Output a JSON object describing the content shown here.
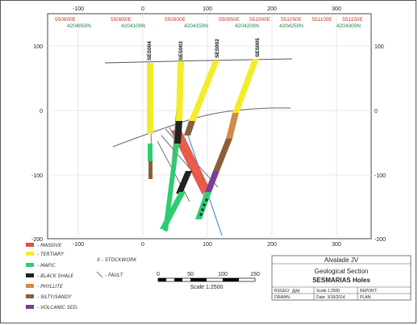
{
  "axes": {
    "x_ticks_top": [
      "-100",
      "0",
      "100",
      "200",
      "300"
    ],
    "x_ticks_bottom": [
      "-100",
      "0",
      "100",
      "200",
      "300"
    ],
    "y_ticks_left": [
      "100",
      "0",
      "-100",
      "-200"
    ],
    "y_ticks_right": [
      "100",
      "0",
      "-100",
      "-200"
    ]
  },
  "easting_labels": [
    "550800E",
    "550850E",
    "550900E",
    "550950E",
    "551000E",
    "551050E",
    "551100E",
    "551150E"
  ],
  "northing_labels": [
    "4204050N",
    "4204100N",
    "4204150N",
    "4204200N",
    "4204250N",
    "4204300N"
  ],
  "holes": [
    "SES004",
    "SES003",
    "SES002",
    "SES005"
  ],
  "legend": {
    "items": [
      {
        "label": "- MASSIVE",
        "color": "#e74c3c"
      },
      {
        "label": "- TERTIARY",
        "color": "#f4ec2a"
      },
      {
        "label": "- MAFIC",
        "color": "#2ecc71"
      },
      {
        "label": "- BLACK SHALE",
        "color": "#222222"
      },
      {
        "label": "- PHYLLITE",
        "color": "#d08a4a"
      },
      {
        "label": "- SILTY/SANDY",
        "color": "#8b5e3c"
      },
      {
        "label": "- VOLCANIC SED.",
        "color": "#7d3c98"
      }
    ],
    "stockwork": "X - STOCKWORK",
    "fault": "- FAULT"
  },
  "scale_bar": {
    "ticks": [
      "0",
      "50",
      "100",
      "150"
    ],
    "label": "Scale 1:2500"
  },
  "title_block": {
    "company": "Alvalade JV",
    "title1": "Geological Section",
    "title2": "SESMARIAS Holes",
    "rsgeo_label": "RSGEO:",
    "rsgeo_value": "BM",
    "drawn_label": "DRAWN:",
    "scale": "Scale 1:2500",
    "date": "Date: 3/18/2014",
    "report": "REPORT:",
    "plan": "PLAN:"
  },
  "colors": {
    "massive": "#e74c3c",
    "tertiary": "#f4ec2a",
    "mafic": "#2ecc71",
    "black_shale": "#222222",
    "phyllite": "#d08a4a",
    "silty": "#8b5e3c",
    "volcanic": "#7d3c98",
    "grid": "#e0e0e0",
    "easting": "#c0392b",
    "northing": "#1e8449"
  }
}
